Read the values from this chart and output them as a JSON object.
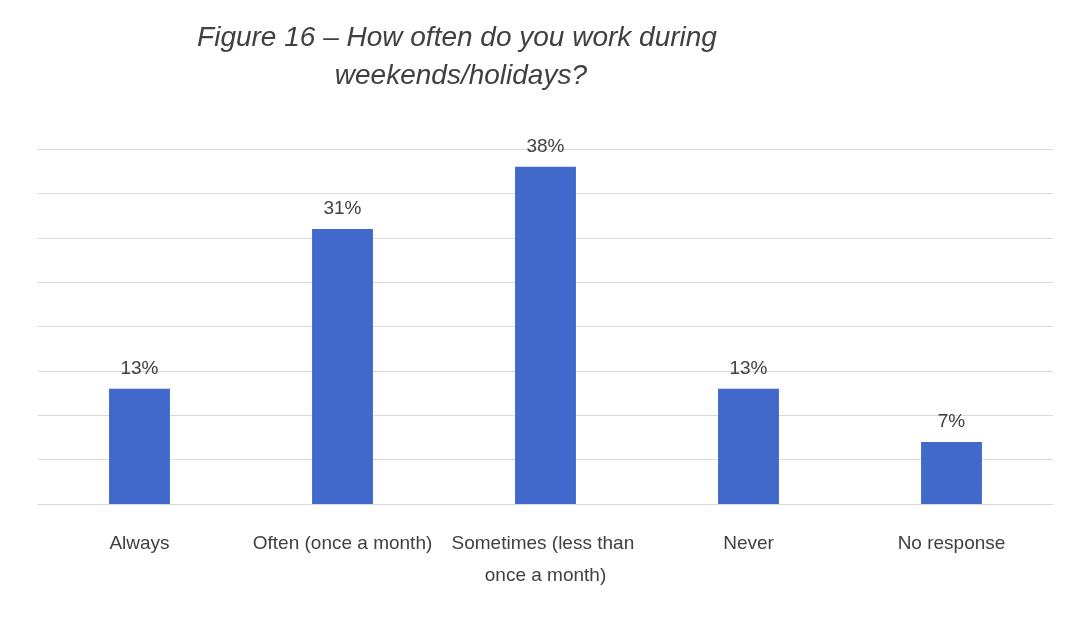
{
  "chart_data": {
    "type": "bar",
    "title": "Figure 16 – How often do you work during weekends/holidays?",
    "categories": [
      "Always",
      "Often (once a month)",
      "Sometimes (less than once a month)",
      "Never",
      "No response"
    ],
    "values": [
      13,
      31,
      38,
      13,
      7
    ],
    "value_labels": [
      "13%",
      "31%",
      "38%",
      "13%",
      "7%"
    ],
    "color": "#4169cc",
    "ylim": [
      0,
      40
    ],
    "yticks": [
      0,
      5,
      10,
      15,
      20,
      25,
      30,
      35,
      40
    ],
    "grid": "y",
    "tick_labels": "x",
    "legend": false
  }
}
